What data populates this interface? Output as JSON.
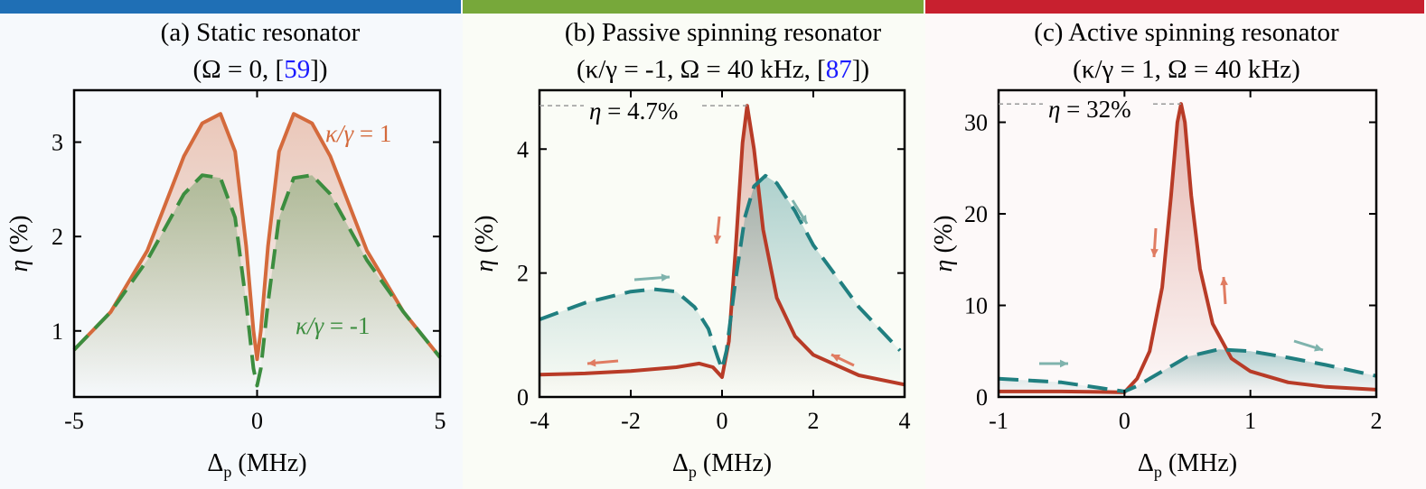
{
  "colors": {
    "bar_a": "#1f6fb5",
    "bar_b": "#77a83a",
    "bar_c": "#c8202f",
    "solid_a": "#d46a3c",
    "dashed_a": "#3c8d3f",
    "solid_bc": "#b83b27",
    "dashed_bc": "#207f80",
    "arrow_red": "#e07c62",
    "arrow_teal": "#7fb3ad",
    "cite": "#1a1aff"
  },
  "chart_data": [
    {
      "type": "line",
      "title": "(a) Static resonator",
      "subtitle_parts": [
        "(Ω = 0, [",
        "59",
        "])"
      ],
      "xlabel": "Δp (MHz)",
      "ylabel": "η (%)",
      "xlim": [
        -5,
        5
      ],
      "ylim": [
        0.3,
        3.55
      ],
      "xticks": [
        -5,
        0,
        5
      ],
      "yticks": [
        1,
        2,
        3
      ],
      "series": [
        {
          "name": "κ/γ = 1",
          "style": "solid",
          "x": [
            -5,
            -4,
            -3,
            -2.5,
            -2,
            -1.5,
            -1,
            -0.6,
            -0.3,
            -0.1,
            0,
            0.1,
            0.3,
            0.6,
            1,
            1.5,
            2,
            2.5,
            3,
            4,
            5
          ],
          "y": [
            0.8,
            1.2,
            1.85,
            2.35,
            2.85,
            3.2,
            3.3,
            2.9,
            1.9,
            1.0,
            0.7,
            1.0,
            1.9,
            2.9,
            3.3,
            3.2,
            2.85,
            2.35,
            1.85,
            1.2,
            0.72
          ]
        },
        {
          "name": "κ/γ = -1",
          "style": "dashed",
          "x": [
            -5,
            -4,
            -3,
            -2.5,
            -2,
            -1.5,
            -1,
            -0.6,
            -0.3,
            -0.1,
            0,
            0.1,
            0.3,
            0.6,
            1,
            1.5,
            2,
            2.5,
            3,
            4,
            5
          ],
          "y": [
            0.8,
            1.2,
            1.75,
            2.1,
            2.45,
            2.65,
            2.62,
            2.2,
            1.3,
            0.6,
            0.42,
            0.6,
            1.3,
            2.2,
            2.62,
            2.65,
            2.45,
            2.1,
            1.75,
            1.2,
            0.72
          ]
        }
      ]
    },
    {
      "type": "line",
      "title": "(b) Passive spinning resonator",
      "subtitle_parts": [
        "(κ/γ = -1, Ω = 40 kHz, [",
        "87",
        "])"
      ],
      "xlabel": "Δp (MHz)",
      "ylabel": "η (%)",
      "xlim": [
        -4,
        4
      ],
      "ylim": [
        0,
        4.95
      ],
      "xticks": [
        -4,
        -2,
        0,
        2,
        4
      ],
      "yticks": [
        0,
        2,
        4
      ],
      "annotation": "η = 4.7%",
      "peak": 4.7,
      "series": [
        {
          "style": "solid",
          "x": [
            -4,
            -3,
            -2,
            -1,
            -0.5,
            -0.2,
            0,
            0.15,
            0.3,
            0.45,
            0.55,
            0.7,
            0.9,
            1.2,
            1.6,
            2,
            3,
            4
          ],
          "y": [
            0.36,
            0.38,
            0.42,
            0.48,
            0.54,
            0.48,
            0.32,
            0.9,
            2.4,
            4.1,
            4.7,
            4.0,
            2.7,
            1.6,
            0.98,
            0.68,
            0.35,
            0.2
          ]
        },
        {
          "style": "dashed",
          "x": [
            -4,
            -3,
            -2,
            -1.5,
            -1,
            -0.6,
            -0.3,
            -0.1,
            0,
            0.1,
            0.3,
            0.5,
            0.7,
            0.95,
            1.2,
            1.6,
            2,
            3,
            3.9
          ],
          "y": [
            1.25,
            1.52,
            1.7,
            1.74,
            1.7,
            1.45,
            1.1,
            0.65,
            0.45,
            0.75,
            1.9,
            2.9,
            3.4,
            3.57,
            3.45,
            3.0,
            2.45,
            1.45,
            0.75
          ]
        }
      ]
    },
    {
      "type": "line",
      "title": "(c) Active spinning resonator",
      "subtitle_parts": [
        "(κ/γ = 1, Ω = 40 kHz)"
      ],
      "xlabel": "Δp (MHz)",
      "ylabel": "η (%)",
      "xlim": [
        -1,
        2
      ],
      "ylim": [
        0,
        33.5
      ],
      "xticks": [
        -1,
        0,
        1,
        2
      ],
      "yticks": [
        0,
        10,
        20,
        30
      ],
      "annotation": "η = 32%",
      "peak": 32,
      "series": [
        {
          "style": "solid",
          "x": [
            -1,
            -0.5,
            -0.2,
            0,
            0.1,
            0.2,
            0.3,
            0.37,
            0.42,
            0.45,
            0.48,
            0.53,
            0.6,
            0.7,
            0.85,
            1,
            1.3,
            1.6,
            2
          ],
          "y": [
            0.6,
            0.6,
            0.55,
            0.5,
            2.0,
            5.0,
            12,
            22,
            30,
            32,
            30,
            22,
            14,
            8,
            4.2,
            2.8,
            1.6,
            1.1,
            0.8
          ]
        },
        {
          "style": "dashed",
          "x": [
            -1,
            -0.5,
            -0.2,
            0,
            0.1,
            0.3,
            0.5,
            0.75,
            1,
            1.3,
            1.6,
            2
          ],
          "y": [
            2.0,
            1.6,
            1.0,
            0.6,
            1.2,
            2.8,
            4.4,
            5.2,
            5.0,
            4.3,
            3.5,
            2.3
          ]
        }
      ]
    }
  ]
}
